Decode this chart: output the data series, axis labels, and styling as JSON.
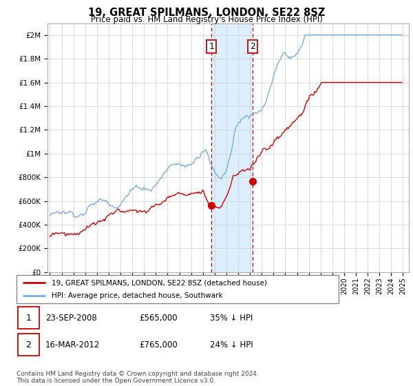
{
  "title": "19, GREAT SPILMANS, LONDON, SE22 8SZ",
  "subtitle": "Price paid vs. HM Land Registry's House Price Index (HPI)",
  "legend_line1": "19, GREAT SPILMANS, LONDON, SE22 8SZ (detached house)",
  "legend_line2": "HPI: Average price, detached house, Southwark",
  "footnote": "Contains HM Land Registry data © Crown copyright and database right 2024.\nThis data is licensed under the Open Government Licence v3.0.",
  "transaction1_label": "1",
  "transaction1_date": "23-SEP-2008",
  "transaction1_price": "£565,000",
  "transaction1_hpi": "35% ↓ HPI",
  "transaction2_label": "2",
  "transaction2_date": "16-MAR-2012",
  "transaction2_price": "£765,000",
  "transaction2_hpi": "24% ↓ HPI",
  "red_line_color": "#cc0000",
  "blue_line_color": "#7aade0",
  "shading_color": "#ddeeff",
  "marker1_x": 2008.73,
  "marker1_y": 565000,
  "marker2_x": 2012.21,
  "marker2_y": 765000,
  "ylim": [
    0,
    2100000
  ],
  "xlim_start": 1994.8,
  "xlim_end": 2025.5,
  "yticks": [
    0,
    200000,
    400000,
    600000,
    800000,
    1000000,
    1200000,
    1400000,
    1600000,
    1800000,
    2000000
  ],
  "ytick_labels": [
    "£0",
    "£200K",
    "£400K",
    "£600K",
    "£800K",
    "£1M",
    "£1.2M",
    "£1.4M",
    "£1.6M",
    "£1.8M",
    "£2M"
  ]
}
